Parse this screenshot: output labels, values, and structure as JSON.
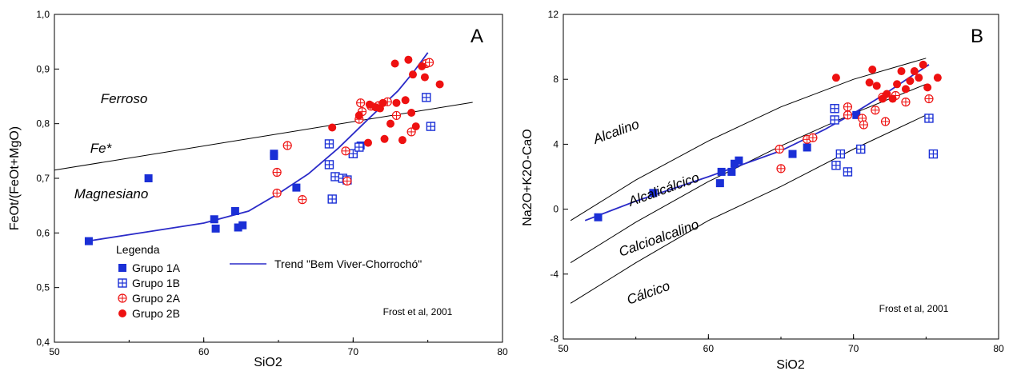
{
  "colors": {
    "grupo1": "#1a2fd6",
    "grupo2": "#ee1111",
    "trend": "#2b2bc8",
    "boundary": "#000000"
  },
  "chart_data": [
    {
      "type": "scatter",
      "panel_label": "A",
      "xlabel": "SiO2",
      "ylabel": "FeOt/(FeOt+MgO)",
      "xlim": [
        50,
        80
      ],
      "ylim": [
        0.4,
        1.0
      ],
      "x_ticks": [
        "50",
        "60",
        "70",
        "80"
      ],
      "y_ticks": [
        "0,4",
        "0,5",
        "0,6",
        "0,7",
        "0,8",
        "0,9",
        "1,0"
      ],
      "legend_title": "Legenda",
      "legend": [
        "Grupo 1A",
        "Grupo 1B",
        "Grupo 2A",
        "Grupo 2B"
      ],
      "trend_label": "Trend \"Bem Viver-Chorrochó\"",
      "credit": "Frost et al, 2001",
      "field_labels": [
        "Ferroso",
        "Fe*",
        "Magnesiano"
      ],
      "boundary": {
        "name": "Fe*",
        "x": [
          50,
          78
        ],
        "y": [
          0.715,
          0.839
        ]
      },
      "trend": {
        "x": [
          52.2,
          56,
          60,
          63,
          65,
          67,
          69,
          71,
          73,
          74,
          75
        ],
        "y": [
          0.585,
          0.601,
          0.618,
          0.64,
          0.672,
          0.708,
          0.755,
          0.808,
          0.86,
          0.893,
          0.93
        ]
      },
      "series": [
        {
          "name": "Grupo 1A",
          "marker": "square",
          "points": [
            [
              52.3,
              0.585
            ],
            [
              56.3,
              0.7
            ],
            [
              60.7,
              0.625
            ],
            [
              60.8,
              0.608
            ],
            [
              62.1,
              0.64
            ],
            [
              62.3,
              0.61
            ],
            [
              62.6,
              0.614
            ],
            [
              64.7,
              0.745
            ],
            [
              64.7,
              0.741
            ],
            [
              66.2,
              0.683
            ],
            [
              70.5,
              0.76
            ]
          ]
        },
        {
          "name": "Grupo 1B",
          "marker": "square-cross",
          "points": [
            [
              68.4,
              0.763
            ],
            [
              68.4,
              0.725
            ],
            [
              68.6,
              0.662
            ],
            [
              68.8,
              0.703
            ],
            [
              69.3,
              0.7
            ],
            [
              69.6,
              0.697
            ],
            [
              70.0,
              0.745
            ],
            [
              70.4,
              0.757
            ],
            [
              74.9,
              0.848
            ],
            [
              75.2,
              0.795
            ]
          ]
        },
        {
          "name": "Grupo 2A",
          "marker": "circle-cross",
          "points": [
            [
              64.9,
              0.711
            ],
            [
              64.9,
              0.673
            ],
            [
              65.6,
              0.76
            ],
            [
              66.6,
              0.661
            ],
            [
              69.5,
              0.75
            ],
            [
              69.6,
              0.695
            ],
            [
              70.4,
              0.808
            ],
            [
              70.5,
              0.838
            ],
            [
              70.6,
              0.822
            ],
            [
              71.2,
              0.832
            ],
            [
              71.7,
              0.833
            ],
            [
              72.3,
              0.84
            ],
            [
              72.9,
              0.815
            ],
            [
              73.9,
              0.785
            ],
            [
              74.9,
              0.91
            ],
            [
              75.1,
              0.912
            ]
          ]
        },
        {
          "name": "Grupo 2B",
          "marker": "circle",
          "points": [
            [
              68.6,
              0.793
            ],
            [
              70.4,
              0.815
            ],
            [
              71.0,
              0.765
            ],
            [
              71.1,
              0.835
            ],
            [
              71.5,
              0.83
            ],
            [
              71.8,
              0.828
            ],
            [
              72.0,
              0.838
            ],
            [
              72.1,
              0.772
            ],
            [
              72.5,
              0.8
            ],
            [
              72.8,
              0.91
            ],
            [
              72.9,
              0.838
            ],
            [
              73.3,
              0.77
            ],
            [
              73.5,
              0.843
            ],
            [
              73.7,
              0.917
            ],
            [
              73.9,
              0.82
            ],
            [
              74.0,
              0.89
            ],
            [
              74.2,
              0.795
            ],
            [
              74.6,
              0.905
            ],
            [
              74.8,
              0.885
            ],
            [
              75.8,
              0.872
            ]
          ]
        }
      ]
    },
    {
      "type": "scatter",
      "panel_label": "B",
      "xlabel": "SiO2",
      "ylabel": "Na2O+K2O-CaO",
      "xlim": [
        50,
        80
      ],
      "ylim": [
        -8,
        12
      ],
      "x_ticks": [
        "50",
        "60",
        "70",
        "80"
      ],
      "y_ticks": [
        "-8",
        "-4",
        "0",
        "4",
        "8",
        "12"
      ],
      "credit": "Frost et al, 2001",
      "field_labels": [
        "Alcalino",
        "Alcalicálcico",
        "Calcioalcalino",
        "Cálcico"
      ],
      "boundaries": [
        {
          "x": [
            50.5,
            55,
            60,
            65,
            70,
            75
          ],
          "y": [
            -0.7,
            1.8,
            4.2,
            6.3,
            8.0,
            9.3
          ]
        },
        {
          "x": [
            50.5,
            55,
            60,
            65,
            70,
            75
          ],
          "y": [
            -3.3,
            -0.8,
            1.7,
            3.9,
            5.9,
            7.7
          ]
        },
        {
          "x": [
            50.5,
            55,
            60,
            65,
            70,
            75
          ],
          "y": [
            -5.8,
            -3.3,
            -0.7,
            1.4,
            3.7,
            5.8
          ]
        }
      ],
      "trend": {
        "x": [
          51.5,
          55,
          60,
          65,
          68,
          70,
          72,
          74,
          75.2
        ],
        "y": [
          -0.7,
          0.5,
          2.0,
          3.6,
          4.9,
          5.9,
          7.0,
          8.2,
          8.9
        ]
      },
      "series": [
        {
          "name": "Grupo 1A",
          "marker": "square",
          "points": [
            [
              52.4,
              -0.5
            ],
            [
              56.2,
              1.0
            ],
            [
              60.8,
              1.6
            ],
            [
              60.9,
              2.3
            ],
            [
              61.6,
              2.3
            ],
            [
              61.8,
              2.8
            ],
            [
              62.1,
              3.0
            ],
            [
              65.8,
              3.4
            ],
            [
              66.8,
              3.8
            ],
            [
              70.2,
              5.8
            ]
          ]
        },
        {
          "name": "Grupo 1B",
          "marker": "square-cross",
          "points": [
            [
              68.7,
              6.2
            ],
            [
              68.7,
              5.5
            ],
            [
              68.8,
              2.7
            ],
            [
              69.1,
              3.4
            ],
            [
              69.6,
              2.3
            ],
            [
              70.5,
              3.7
            ],
            [
              75.2,
              5.6
            ],
            [
              75.5,
              3.4
            ]
          ]
        },
        {
          "name": "Grupo 2A",
          "marker": "circle-cross",
          "points": [
            [
              64.9,
              3.7
            ],
            [
              65.0,
              2.5
            ],
            [
              66.8,
              4.3
            ],
            [
              67.2,
              4.4
            ],
            [
              69.6,
              5.8
            ],
            [
              69.6,
              6.3
            ],
            [
              70.6,
              5.6
            ],
            [
              70.7,
              5.2
            ],
            [
              71.5,
              6.1
            ],
            [
              72.0,
              6.9
            ],
            [
              72.2,
              5.4
            ],
            [
              72.9,
              7.0
            ],
            [
              73.6,
              6.6
            ],
            [
              75.2,
              6.8
            ]
          ]
        },
        {
          "name": "Grupo 2B",
          "marker": "circle",
          "points": [
            [
              68.8,
              8.1
            ],
            [
              71.1,
              7.8
            ],
            [
              71.3,
              8.6
            ],
            [
              71.6,
              7.6
            ],
            [
              72.0,
              6.8
            ],
            [
              72.3,
              7.1
            ],
            [
              72.7,
              6.8
            ],
            [
              73.0,
              7.7
            ],
            [
              73.3,
              8.5
            ],
            [
              73.6,
              7.4
            ],
            [
              73.9,
              7.9
            ],
            [
              74.2,
              8.5
            ],
            [
              74.5,
              8.1
            ],
            [
              74.8,
              8.9
            ],
            [
              75.1,
              7.5
            ],
            [
              75.8,
              8.1
            ]
          ]
        }
      ]
    }
  ]
}
